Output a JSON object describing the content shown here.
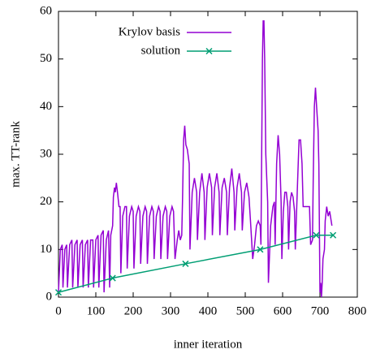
{
  "chart_data": {
    "type": "line",
    "xlabel": "inner iteration",
    "ylabel": "max. TT-rank",
    "xlim": [
      0,
      800
    ],
    "xticks": [
      0,
      100,
      200,
      300,
      400,
      500,
      600,
      700,
      800
    ],
    "ylim": [
      0,
      60
    ],
    "yticks": [
      0,
      10,
      20,
      30,
      40,
      50,
      60
    ],
    "grid": false,
    "legend": "top",
    "series": [
      {
        "name": "Krylov basis",
        "color": "#9400d3",
        "marker": "none",
        "x": [
          0,
          5,
          10,
          12,
          17,
          22,
          24,
          30,
          36,
          38,
          44,
          50,
          52,
          58,
          64,
          66,
          72,
          78,
          80,
          86,
          92,
          94,
          100,
          106,
          108,
          114,
          120,
          122,
          128,
          134,
          137,
          140,
          145,
          147,
          150,
          152,
          155,
          158,
          162,
          165,
          167,
          172,
          178,
          182,
          184,
          190,
          196,
          200,
          202,
          208,
          214,
          218,
          220,
          226,
          232,
          236,
          238,
          244,
          250,
          254,
          256,
          262,
          268,
          272,
          274,
          280,
          286,
          290,
          292,
          298,
          304,
          308,
          312,
          318,
          322,
          326,
          330,
          332,
          335,
          338,
          341,
          345,
          350,
          352,
          358,
          364,
          370,
          372,
          378,
          384,
          390,
          392,
          398,
          404,
          410,
          412,
          418,
          424,
          430,
          432,
          438,
          444,
          450,
          452,
          458,
          464,
          470,
          472,
          478,
          484,
          490,
          492,
          498,
          504,
          510,
          514,
          520,
          525,
          530,
          535,
          540,
          542,
          546,
          548,
          550,
          552,
          555,
          560,
          562,
          568,
          574,
          578,
          580,
          584,
          588,
          592,
          596,
          598,
          602,
          606,
          610,
          614,
          616,
          620,
          624,
          628,
          632,
          634,
          640,
          644,
          648,
          652,
          655,
          660,
          668,
          672,
          675,
          680,
          682,
          685,
          688,
          691,
          695,
          697,
          700,
          702,
          704,
          706,
          708,
          712,
          714,
          718,
          722,
          726,
          730,
          732
        ],
        "values": [
          1,
          10,
          11,
          2,
          10,
          11,
          2,
          11,
          12,
          2,
          11,
          12,
          2,
          11,
          12,
          2,
          11,
          12,
          2,
          12,
          12,
          2,
          12,
          13,
          2,
          13,
          14,
          1,
          12,
          14,
          2,
          13,
          15,
          21,
          23,
          22,
          24,
          22,
          19,
          19,
          5,
          17,
          19,
          19,
          6,
          17,
          19,
          18,
          6,
          17,
          19,
          18,
          7,
          17,
          19,
          18,
          7,
          17,
          19,
          18,
          8,
          17,
          19,
          18,
          8,
          17,
          19,
          18,
          8,
          17,
          19,
          18,
          8,
          12,
          14,
          12,
          13,
          20,
          33,
          36,
          32,
          31,
          28,
          10,
          22,
          25,
          22,
          12,
          22,
          26,
          22,
          12,
          23,
          26,
          23,
          13,
          23,
          26,
          22,
          13,
          23,
          25,
          22,
          13,
          23,
          27,
          22,
          14,
          23,
          26,
          22,
          14,
          22,
          24,
          21,
          16,
          8,
          11,
          15,
          16,
          15,
          11,
          50,
          58,
          58,
          50,
          30,
          20,
          3,
          15,
          19,
          20,
          11,
          28,
          34,
          30,
          20,
          8,
          18,
          22,
          22,
          19,
          10,
          20,
          22,
          21,
          18,
          10,
          24,
          33,
          33,
          28,
          19,
          19,
          19,
          19,
          11,
          12,
          25,
          40,
          44,
          40,
          35,
          28,
          1,
          3,
          0,
          3,
          8,
          10,
          16,
          19,
          17,
          18,
          16,
          15
        ]
      },
      {
        "name": "solution",
        "color": "#009e73",
        "marker": "x",
        "x": [
          0,
          145,
          340,
          540,
          690,
          735
        ],
        "values": [
          1,
          4,
          7,
          10,
          13,
          13
        ]
      }
    ]
  }
}
